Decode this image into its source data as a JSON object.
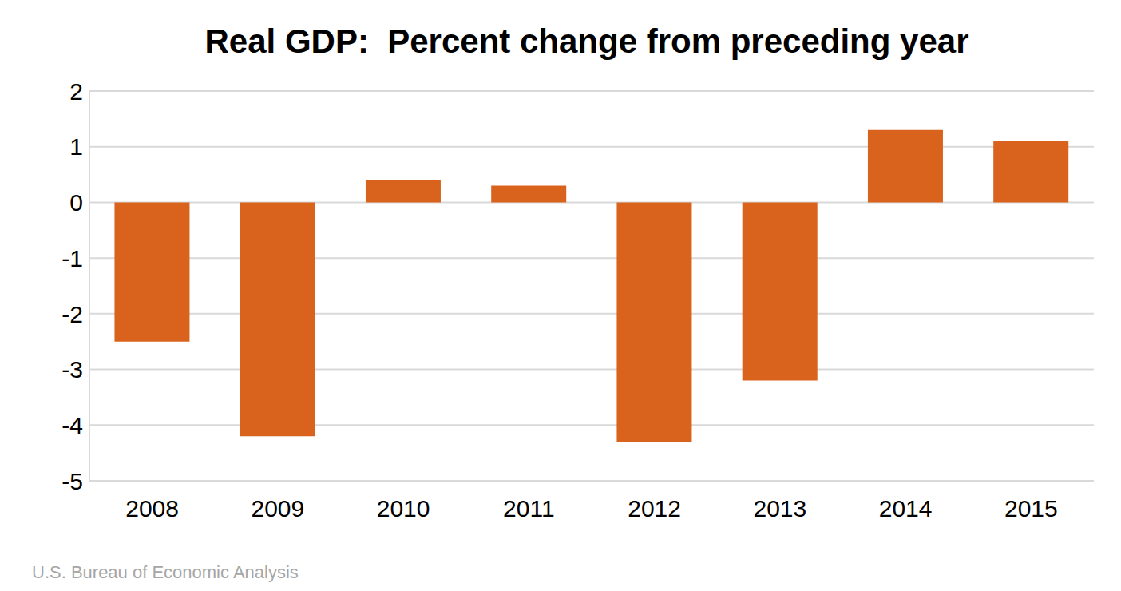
{
  "chart_data": {
    "type": "bar",
    "title": "Real GDP:  Percent change from preceding year",
    "source": "U.S. Bureau of Economic Analysis",
    "categories": [
      "2008",
      "2009",
      "2010",
      "2011",
      "2012",
      "2013",
      "2014",
      "2015"
    ],
    "values": [
      -2.5,
      -4.2,
      0.4,
      0.3,
      -4.3,
      -3.2,
      1.3,
      1.1
    ],
    "color": "#d9621c",
    "ylim": [
      -5,
      2
    ],
    "yticks": [
      -5,
      -4,
      -3,
      -2,
      -1,
      0,
      1,
      2
    ],
    "grid": true
  }
}
